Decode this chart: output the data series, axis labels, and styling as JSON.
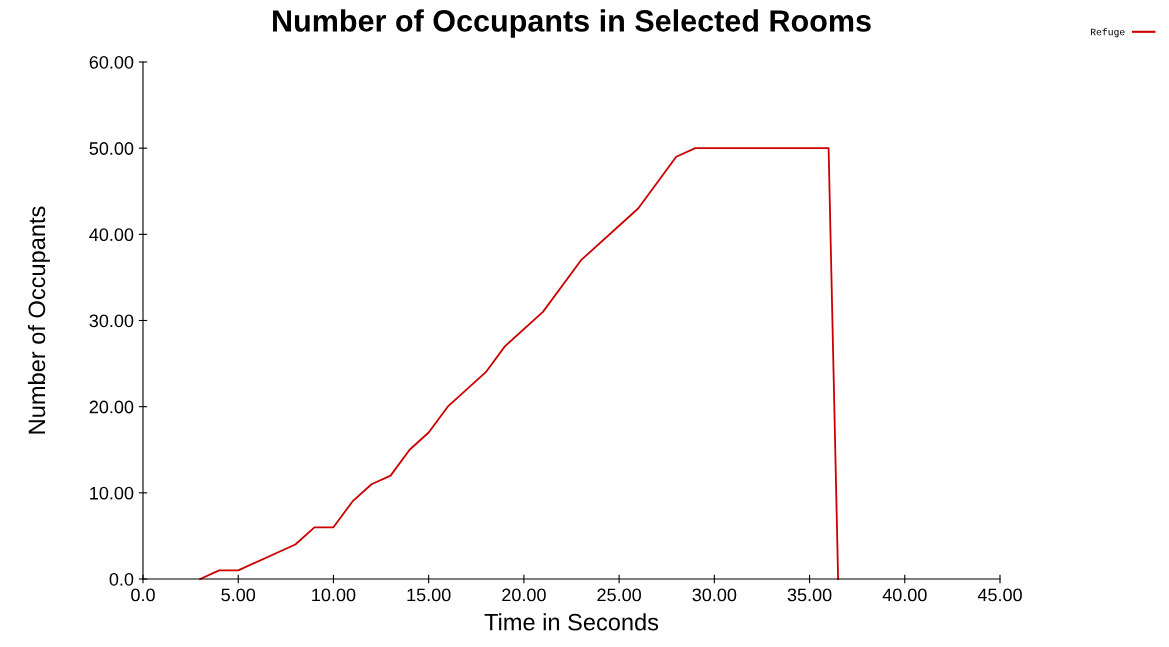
{
  "chart_data": {
    "type": "line",
    "title": "Number of Occupants in Selected Rooms",
    "xlabel": "Time in Seconds",
    "ylabel": "Number of Occupants",
    "x": [
      3,
      4,
      5,
      8,
      9,
      10,
      11,
      12,
      13,
      14,
      15,
      16,
      18,
      19,
      21,
      23,
      26,
      28,
      29,
      36,
      36.5
    ],
    "series": [
      {
        "name": "Refuge",
        "color": "#cc0000",
        "values": [
          0,
          1,
          1,
          4,
          6,
          6,
          9,
          11,
          12,
          15,
          17,
          20,
          24,
          27,
          31,
          37,
          43,
          49,
          50,
          50,
          0
        ]
      }
    ],
    "xlim": [
      0,
      45
    ],
    "xticks": [
      {
        "value": 0,
        "label": "0.0"
      },
      {
        "value": 5,
        "label": "5.00"
      },
      {
        "value": 10,
        "label": "10.00"
      },
      {
        "value": 15,
        "label": "15.00"
      },
      {
        "value": 20,
        "label": "20.00"
      },
      {
        "value": 25,
        "label": "25.00"
      },
      {
        "value": 30,
        "label": "30.00"
      },
      {
        "value": 35,
        "label": "35.00"
      },
      {
        "value": 40,
        "label": "40.00"
      },
      {
        "value": 45,
        "label": "45.00"
      }
    ],
    "ylim": [
      0,
      60
    ],
    "yticks": [
      {
        "value": 0,
        "label": "0.0"
      },
      {
        "value": 10,
        "label": "10.00"
      },
      {
        "value": 20,
        "label": "20.00"
      },
      {
        "value": 30,
        "label": "30.00"
      },
      {
        "value": 40,
        "label": "40.00"
      },
      {
        "value": 50,
        "label": "50.00"
      },
      {
        "value": 60,
        "label": "60.00"
      }
    ],
    "grid": false,
    "legend": "top right",
    "marker": "none",
    "line_style": "solid"
  }
}
